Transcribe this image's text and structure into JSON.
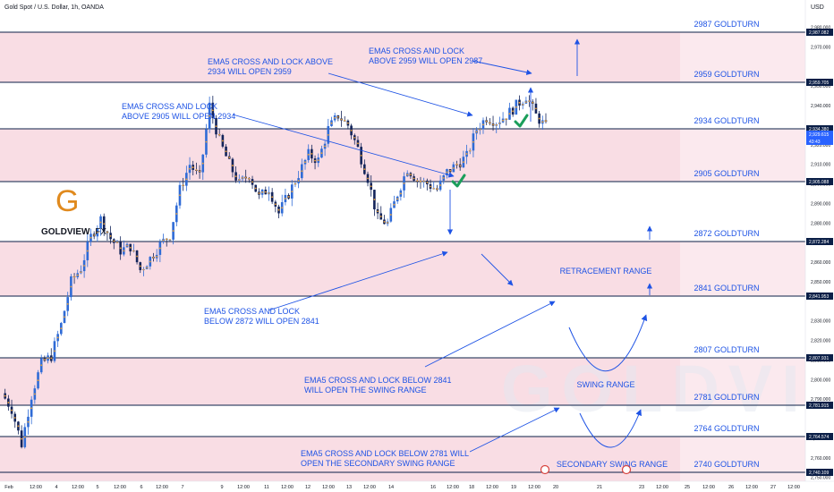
{
  "header": {
    "symbol_title": "Gold Spot / U.S. Dollar, 1h, OANDA",
    "currency": "USD"
  },
  "brand": {
    "logo_letter": "G",
    "name_main": "GOLDVIEW",
    "name_sub": "FX",
    "watermark": "GOLDVIEW",
    "logo_color": "#e08a1e"
  },
  "colors": {
    "band_pink": "#f9dde4",
    "annotation_blue": "#1e53e5",
    "level_line": "#0b1f47",
    "bull_candle": "#26a69a",
    "bear_candle": "#ef5350",
    "ema": "#f0a030",
    "check": "#1b9e5a"
  },
  "chart_data": {
    "type": "candlestick",
    "title": "Gold Spot / U.S. Dollar, 1h, OANDA",
    "y_axis_unit": "USD",
    "ylim": [
      2748,
      2994
    ],
    "y_ticks": [
      "2,990.000",
      "2,980.000",
      "2,970.000",
      "2,950.000",
      "2,940.000",
      "2,920.000",
      "2,910.000",
      "2,900.000",
      "2,890.000",
      "2,880.000",
      "2,860.000",
      "2,850.000",
      "2,830.000",
      "2,820.000",
      "2,810.000",
      "2,800.000",
      "2,790.000",
      "2,770.000",
      "2,760.000",
      "2,750.000"
    ],
    "x_ticks": [
      "Feb",
      "12:00",
      "4",
      "12:00",
      "5",
      "12:00",
      "6",
      "12:00",
      "7",
      "9",
      "12:00",
      "11",
      "12:00",
      "12",
      "12:00",
      "13",
      "12:00",
      "14",
      "16",
      "12:00",
      "18",
      "12:00",
      "19",
      "12:00",
      "20",
      "21",
      "23",
      "12:00",
      "25",
      "12:00",
      "26",
      "12:00",
      "27",
      "12:00"
    ],
    "level_tags": [
      "2,987.082",
      "2,959.705",
      "2,934.380",
      "2,929.615",
      "43:43",
      "2,905.088",
      "2,872.284",
      "2,841.953",
      "2,807.931",
      "2,781.915",
      "2,764.574",
      "2,740.109"
    ],
    "current_price": {
      "price": "2,929.615",
      "countdown": "43:43"
    },
    "levels": [
      {
        "label": "2987 GOLDTURN",
        "price": 2987.082
      },
      {
        "label": "2959 GOLDTURN",
        "price": 2959.705
      },
      {
        "label": "2934 GOLDTURN",
        "price": 2934.38
      },
      {
        "label": "2905 GOLDTURN",
        "price": 2905.088
      },
      {
        "label": "2872 GOLDTURN",
        "price": 2872.284
      },
      {
        "label": "2841 GOLDTURN",
        "price": 2841.953
      },
      {
        "label": "2807 GOLDTURN",
        "price": 2807.931
      },
      {
        "label": "2781 GOLDTURN",
        "price": 2781.915
      },
      {
        "label": "2764 GOLDTURN",
        "price": 2764.574
      },
      {
        "label": "2740 GOLDTURN",
        "price": 2740.109
      }
    ],
    "zones": [
      {
        "label": "RETRACEMENT RANGE"
      },
      {
        "label": "SWING RANGE"
      },
      {
        "label": "SECONDARY SWING RANGE"
      }
    ],
    "annotations": [
      {
        "lines": [
          "EMA5 CROSS AND LOCK ABOVE",
          "2934 WILL OPEN 2959"
        ]
      },
      {
        "lines": [
          "EMA5 CROSS AND LOCK",
          "ABOVE 2959 WILL OPEN 2987"
        ]
      },
      {
        "lines": [
          "EMA5 CROSS AND LOCK",
          "ABOVE 2905 WILL OPEN 2934"
        ]
      },
      {
        "lines": [
          "EMA5 CROSS AND LOCK",
          "BELOW 2872 WILL OPEN 2841"
        ]
      },
      {
        "lines": [
          "EMA5 CROSS AND LOCK BELOW 2841",
          "WILL OPEN THE SWING RANGE"
        ]
      },
      {
        "lines": [
          "EMA5 CROSS AND LOCK BELOW 2781 WILL",
          "OPEN THE SECONDARY SWING RANGE"
        ]
      }
    ],
    "price_path": [
      {
        "x": 0,
        "p": 2793
      },
      {
        "x": 1,
        "p": 2785
      },
      {
        "x": 2,
        "p": 2767
      },
      {
        "x": 3,
        "p": 2792
      },
      {
        "x": 4,
        "p": 2808
      },
      {
        "x": 5,
        "p": 2812
      },
      {
        "x": 6,
        "p": 2828
      },
      {
        "x": 7,
        "p": 2850
      },
      {
        "x": 8,
        "p": 2857
      },
      {
        "x": 9,
        "p": 2873
      },
      {
        "x": 10,
        "p": 2882
      },
      {
        "x": 11,
        "p": 2872
      },
      {
        "x": 12,
        "p": 2866
      },
      {
        "x": 13,
        "p": 2868
      },
      {
        "x": 14,
        "p": 2856
      },
      {
        "x": 15,
        "p": 2862
      },
      {
        "x": 16,
        "p": 2869
      },
      {
        "x": 17,
        "p": 2874
      },
      {
        "x": 18,
        "p": 2897
      },
      {
        "x": 19,
        "p": 2910
      },
      {
        "x": 20,
        "p": 2903
      },
      {
        "x": 21,
        "p": 2940
      },
      {
        "x": 22,
        "p": 2922
      },
      {
        "x": 23,
        "p": 2910
      },
      {
        "x": 24,
        "p": 2900
      },
      {
        "x": 25,
        "p": 2905
      },
      {
        "x": 26,
        "p": 2893
      },
      {
        "x": 27,
        "p": 2898
      },
      {
        "x": 28,
        "p": 2885
      },
      {
        "x": 29,
        "p": 2895
      },
      {
        "x": 30,
        "p": 2905
      },
      {
        "x": 31,
        "p": 2915
      },
      {
        "x": 32,
        "p": 2912
      },
      {
        "x": 33,
        "p": 2928
      },
      {
        "x": 34,
        "p": 2935
      },
      {
        "x": 35,
        "p": 2930
      },
      {
        "x": 36,
        "p": 2918
      },
      {
        "x": 37,
        "p": 2903
      },
      {
        "x": 38,
        "p": 2882
      },
      {
        "x": 39,
        "p": 2880
      },
      {
        "x": 40,
        "p": 2895
      },
      {
        "x": 41,
        "p": 2908
      },
      {
        "x": 42,
        "p": 2902
      },
      {
        "x": 43,
        "p": 2900
      },
      {
        "x": 44,
        "p": 2897
      },
      {
        "x": 45,
        "p": 2906
      },
      {
        "x": 46,
        "p": 2910
      },
      {
        "x": 47,
        "p": 2914
      },
      {
        "x": 48,
        "p": 2928
      },
      {
        "x": 49,
        "p": 2934
      },
      {
        "x": 50,
        "p": 2932
      },
      {
        "x": 51,
        "p": 2935
      },
      {
        "x": 52,
        "p": 2940
      },
      {
        "x": 53,
        "p": 2945
      },
      {
        "x": 54,
        "p": 2935
      },
      {
        "x": 55,
        "p": 2929
      }
    ]
  }
}
